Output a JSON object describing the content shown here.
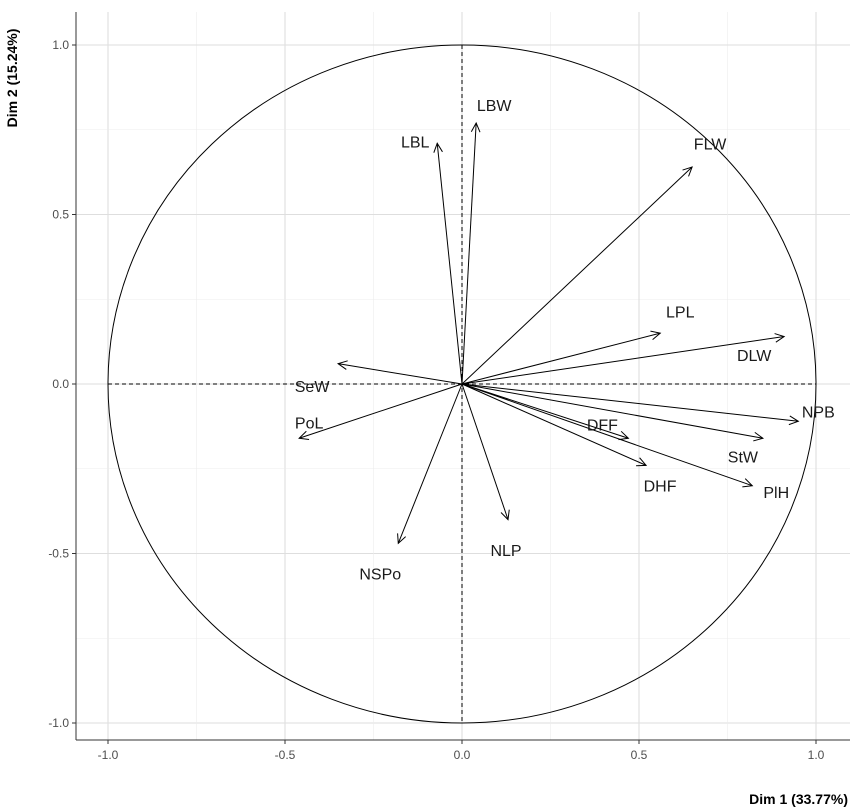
{
  "chart_data": {
    "type": "scatter",
    "subtype": "pca-correlation-circle",
    "title": "",
    "xlabel": "Dim 1 (33.77%)",
    "ylabel": "Dim 2 (15.24%)",
    "xlim": [
      -1.1,
      1.1
    ],
    "ylim": [
      -1.1,
      1.0
    ],
    "x_ticks": [
      -1.0,
      -0.5,
      0.0,
      0.5,
      1.0
    ],
    "x_tick_labels": [
      "-1.0",
      "-0.5",
      "0.0",
      "0.5",
      "1.0"
    ],
    "y_ticks": [
      -1.0,
      -0.5,
      0.0,
      0.5,
      1.0
    ],
    "y_tick_labels": [
      "-1.0",
      "-0.5",
      "0.0",
      "0.5",
      "1.0"
    ],
    "grid": true,
    "unit_circle": true,
    "colors": {
      "grid_major": "#dedede",
      "grid_minor": "#ececec",
      "axes": "#333333",
      "arrow": "#000000"
    },
    "series": [
      {
        "name": "LBW",
        "x": 0.04,
        "y": 0.77
      },
      {
        "name": "LBL",
        "x": -0.07,
        "y": 0.71
      },
      {
        "name": "FLW",
        "x": 0.65,
        "y": 0.64
      },
      {
        "name": "LPL",
        "x": 0.56,
        "y": 0.15
      },
      {
        "name": "DLW",
        "x": 0.91,
        "y": 0.14
      },
      {
        "name": "NPB",
        "x": 0.95,
        "y": -0.11
      },
      {
        "name": "StW",
        "x": 0.85,
        "y": -0.16
      },
      {
        "name": "PlH",
        "x": 0.82,
        "y": -0.3
      },
      {
        "name": "DFF",
        "x": 0.47,
        "y": -0.16
      },
      {
        "name": "DHF",
        "x": 0.52,
        "y": -0.24
      },
      {
        "name": "NLP",
        "x": 0.13,
        "y": -0.4
      },
      {
        "name": "NSPo",
        "x": -0.18,
        "y": -0.47
      },
      {
        "name": "PoL",
        "x": -0.46,
        "y": -0.16
      },
      {
        "name": "SeW",
        "x": -0.35,
        "y": 0.06
      }
    ]
  }
}
